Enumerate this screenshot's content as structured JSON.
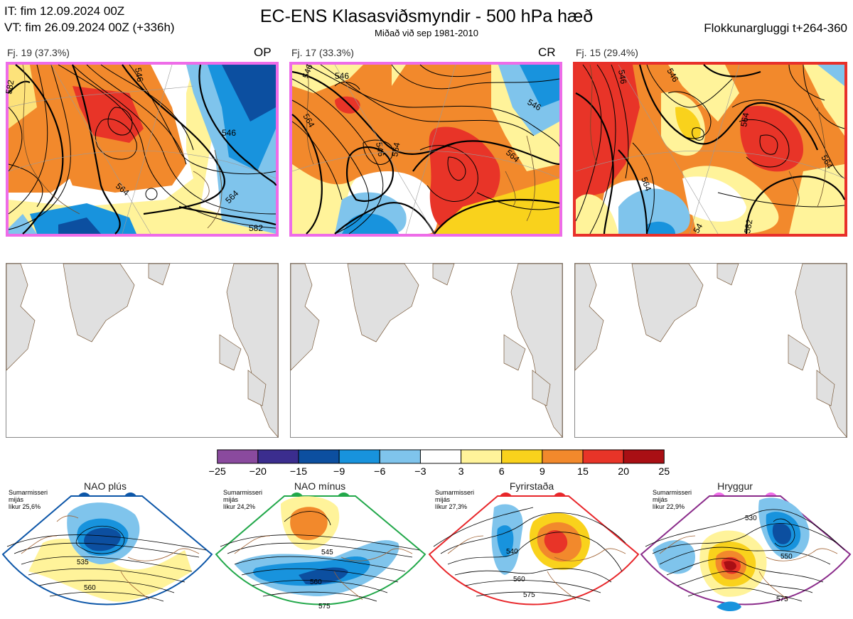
{
  "header": {
    "it": "IT: fim 12.09.2024 00Z",
    "vt": "VT: fim 26.09.2024 00Z  (+336h)",
    "title": "EC-ENS Klasasviðsmyndir - 500 hPa hæð",
    "subtitle": "Miðað við sep 1981-2010",
    "window": "Flokkunargluggi t+264-360"
  },
  "clusters": [
    {
      "label": "Fj. 19 (37.3%)",
      "tag": "OP",
      "border_color": "#ee6ce8",
      "contour_labels": [
        "546",
        "564",
        "564",
        "582",
        "582",
        "546"
      ]
    },
    {
      "label": "Fj. 17 (33.3%)",
      "tag": "CR",
      "border_color": "#ee6ce8",
      "contour_labels": [
        "546",
        "564",
        "546",
        "564",
        "564",
        "546",
        "546"
      ]
    },
    {
      "label": "Fj. 15 (29.4%)",
      "tag": "",
      "border_color": "#e8302a",
      "contour_labels": [
        "546",
        "546",
        "564",
        "564",
        "564",
        "582",
        "54"
      ]
    }
  ],
  "colorbar": {
    "ticks": [
      "−25",
      "−20",
      "−15",
      "−9",
      "−6",
      "−3",
      "3",
      "6",
      "9",
      "15",
      "20",
      "25"
    ],
    "colors": [
      "#8a4a9e",
      "#3b2d8e",
      "#0c4fa0",
      "#1893dd",
      "#7fc4ec",
      "#ffffff",
      "#fff39a",
      "#f9d21c",
      "#f2892c",
      "#e83428",
      "#a90f14"
    ]
  },
  "regimes": [
    {
      "name": "NAO plús",
      "season": "Sumarmisseri",
      "basis": "mijás",
      "probability": "líkur 25,6%",
      "dot_color": "#0c56a8",
      "border_color": "#0c56a8",
      "contour_labels": [
        "535",
        "560"
      ]
    },
    {
      "name": "NAO mínus",
      "season": "Sumarmisseri",
      "basis": "mijás",
      "probability": "líkur 24,2%",
      "dot_color": "#22a84a",
      "border_color": "#22a84a",
      "contour_labels": [
        "545",
        "560",
        "575"
      ]
    },
    {
      "name": "Fyrirstaða",
      "season": "Sumarmisseri",
      "basis": "mijás",
      "probability": "líkur 27,3%",
      "dot_color": "#e8262a",
      "border_color": "#e8262a",
      "contour_labels": [
        "540",
        "560",
        "575"
      ]
    },
    {
      "name": "Hryggur",
      "season": "Sumarmisseri",
      "basis": "mijás",
      "probability": "líkur 22,9%",
      "dot_color": "#ee6ce8",
      "border_color": "#8a2b8a",
      "contour_labels": [
        "530",
        "550",
        "575"
      ]
    }
  ]
}
